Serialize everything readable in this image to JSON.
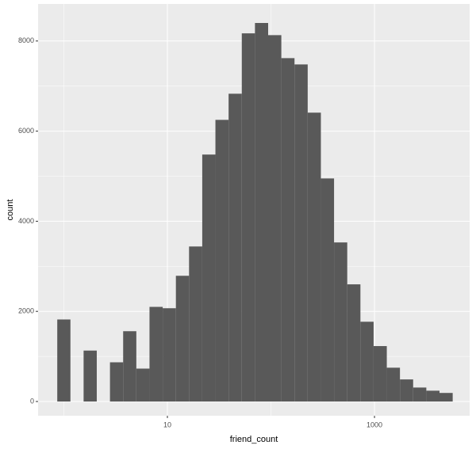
{
  "chart_data": {
    "type": "histogram",
    "x_label": "friend_count",
    "y_label": "count",
    "x_log": true,
    "bins": [
      0.864,
      1.158,
      1.552,
      2.08,
      2.79,
      3.74,
      5.013,
      6.72,
      9.01,
      12.08,
      16.19,
      21.71,
      29.1,
      39.01,
      52.3,
      70.11,
      93.99,
      126.0,
      168.9,
      226.5,
      303.6,
      407.0,
      545.7,
      731.5,
      980.6,
      1315,
      1762,
      2362,
      3167,
      4246,
      5692
    ],
    "values": [
      1820,
      0,
      1130,
      0,
      870,
      1560,
      730,
      2100,
      2070,
      2790,
      3440,
      5480,
      6250,
      6830,
      8170,
      8400,
      8130,
      7620,
      7480,
      6410,
      4950,
      3530,
      2600,
      1770,
      1230,
      750,
      490,
      310,
      240,
      190
    ],
    "color": "#595959",
    "xlim": [
      0.564,
      8300
    ],
    "xticks": [
      10,
      1000
    ],
    "ylim": [
      -316,
      8822
    ],
    "yticks": [
      0,
      2000,
      4000,
      6000,
      8000
    ],
    "grid": true
  }
}
